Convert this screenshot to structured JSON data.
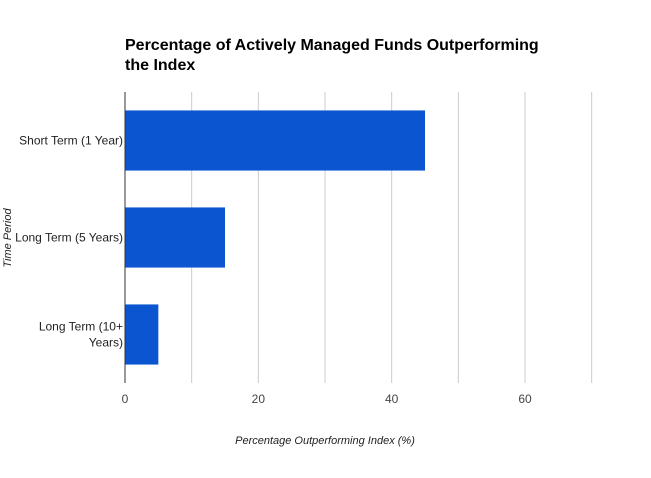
{
  "chart_data": {
    "type": "bar",
    "orientation": "horizontal",
    "title_lines": [
      "Percentage of Actively Managed Funds Outperforming",
      "the Index"
    ],
    "xlabel": "Percentage Outperforming Index (%)",
    "ylabel": "Time Period",
    "category_lines": [
      [
        "Short Term (1 Year)"
      ],
      [
        "Long Term (5 Years)"
      ],
      [
        "Long Term (10+",
        "Years)"
      ]
    ],
    "values": [
      45,
      15,
      5
    ],
    "xlim": [
      0,
      75
    ],
    "xticks": [
      0,
      20,
      40,
      60
    ],
    "grid_step": 10,
    "grid": true,
    "bar_color": "#0b55d0",
    "grid_color": "#cccccc",
    "axis_color": "#333333"
  }
}
